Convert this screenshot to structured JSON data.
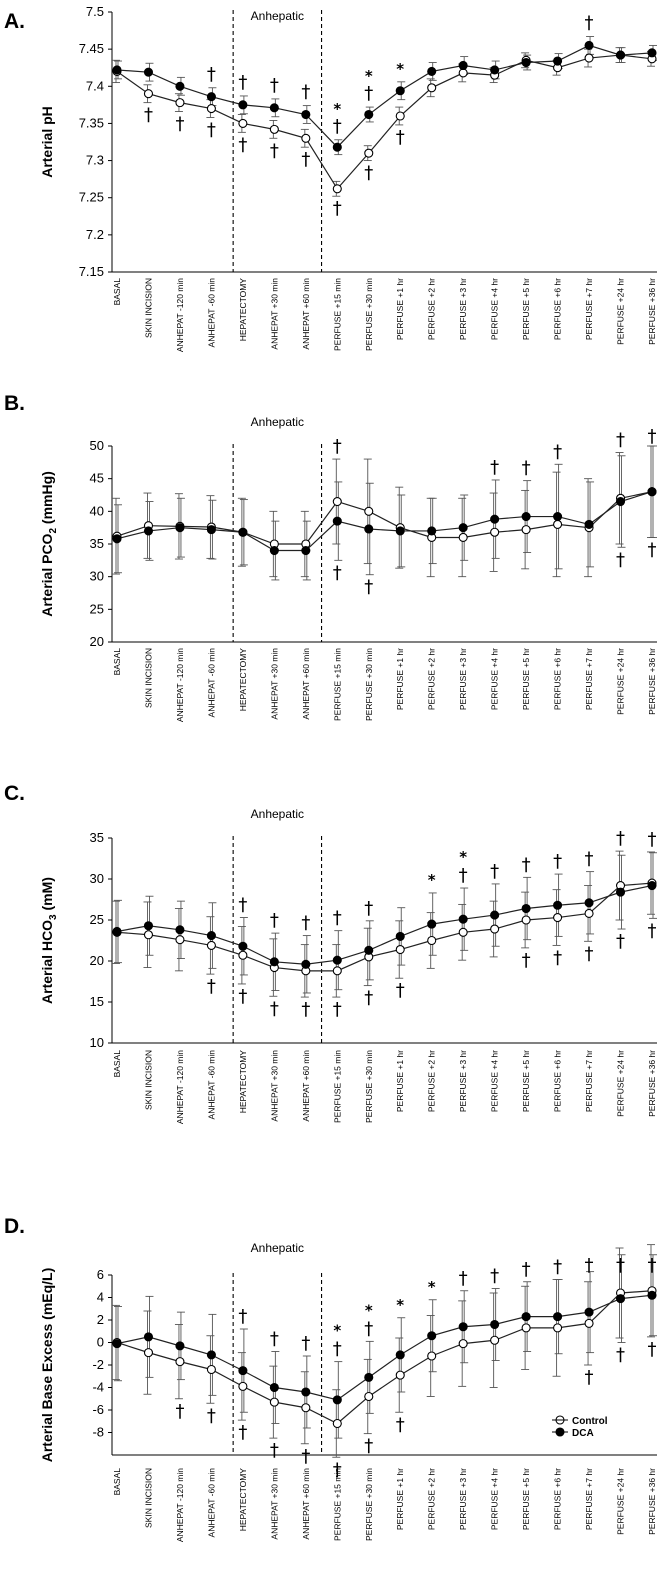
{
  "chart_data": [
    {
      "type": "line",
      "panel": "A.",
      "ylabel": "Arterial pH",
      "ylim": [
        7.15,
        7.5
      ],
      "yticks": [
        "7.15",
        "7.2",
        "7.25",
        "7.3",
        "7.35",
        "7.4",
        "7.45",
        "7.5"
      ],
      "categories": [
        "BASAL",
        "SKIN INCISION",
        "ANHEPAT -120 min",
        "ANHEPAT -60 min",
        "HEPATECTOMY",
        "ANHEPAT +30 min",
        "ANHEPAT +60 min",
        "PERFUSE +15 min",
        "PERFUSE +30 min",
        "PERFUSE +1 hr",
        "PERFUSE +2 hr",
        "PERFUSE +3 hr",
        "PERFUSE +4 hr",
        "PERFUSE +5 hr",
        "PERFUSE +6 hr",
        "PERFUSE +7 hr",
        "PERFUSE +24 hr",
        "PERFUSE +36 hr"
      ],
      "annotation": "Anhepatic",
      "series": [
        {
          "marker": "open",
          "values": [
            7.42,
            7.39,
            7.378,
            7.37,
            7.35,
            7.342,
            7.33,
            7.262,
            7.31,
            7.36,
            7.398,
            7.418,
            7.415,
            7.435,
            7.425,
            7.438,
            7.442,
            7.437
          ],
          "err": [
            0.015,
            0.012,
            0.012,
            0.012,
            0.012,
            0.012,
            0.012,
            0.01,
            0.01,
            0.012,
            0.012,
            0.012,
            0.01,
            0.01,
            0.01,
            0.012,
            0.01,
            0.01
          ]
        },
        {
          "marker": "filled",
          "values": [
            7.422,
            7.419,
            7.4,
            7.386,
            7.375,
            7.371,
            7.362,
            7.318,
            7.362,
            7.394,
            7.42,
            7.428,
            7.422,
            7.432,
            7.434,
            7.455,
            7.442,
            7.445
          ],
          "err": [
            0.012,
            0.012,
            0.012,
            0.012,
            0.012,
            0.012,
            0.012,
            0.01,
            0.01,
            0.012,
            0.012,
            0.012,
            0.012,
            0.01,
            0.01,
            0.012,
            0.01,
            0.01
          ]
        }
      ],
      "daggers_above": [
        3,
        4,
        5,
        6,
        7,
        8,
        15
      ],
      "daggers_below": [
        1,
        2,
        3,
        4,
        5,
        6,
        7,
        8,
        9
      ],
      "stars": [
        7,
        8,
        9
      ]
    },
    {
      "type": "line",
      "panel": "B.",
      "ylabel_main": "Arterial PCO",
      "ylabel_sub": "2",
      "ylabel_unit": " (mmHg)",
      "ylim": [
        20,
        50
      ],
      "yticks": [
        "20",
        "25",
        "30",
        "35",
        "40",
        "45",
        "50"
      ],
      "categories": [
        "BASAL",
        "SKIN INCISION",
        "ANHEPAT -120 min",
        "ANHEPAT -60 min",
        "HEPATECTOMY",
        "ANHEPAT +30 min",
        "ANHEPAT +60 min",
        "PERFUSE +15 min",
        "PERFUSE +30 min",
        "PERFUSE +1 hr",
        "PERFUSE +2 hr",
        "PERFUSE +3 hr",
        "PERFUSE +4 hr",
        "PERFUSE +5 hr",
        "PERFUSE +6 hr",
        "PERFUSE +7 hr",
        "PERFUSE +24 hr",
        "PERFUSE +36 hr"
      ],
      "annotation": "Anhepatic",
      "series": [
        {
          "marker": "open",
          "values": [
            36.2,
            37.8,
            37.7,
            37.6,
            36.8,
            35.0,
            35.0,
            41.5,
            40.0,
            37.5,
            36.0,
            36.0,
            36.8,
            37.2,
            38.0,
            37.5,
            42.0,
            43.0
          ],
          "err": [
            5.8,
            5.0,
            5.0,
            4.8,
            5.2,
            5.0,
            5.0,
            6.5,
            8.0,
            6.2,
            6.0,
            6.0,
            6.0,
            6.0,
            8.0,
            7.5,
            7.0,
            7.0
          ]
        },
        {
          "marker": "filled",
          "values": [
            35.8,
            37.0,
            37.5,
            37.2,
            36.8,
            34.0,
            34.0,
            38.5,
            37.3,
            37.0,
            37.0,
            37.5,
            38.8,
            39.2,
            39.2,
            38.0,
            41.5,
            43.0
          ],
          "err": [
            5.2,
            4.5,
            4.5,
            4.5,
            5.0,
            4.5,
            4.5,
            6.0,
            7.0,
            5.5,
            5.0,
            5.0,
            6.0,
            5.5,
            8.0,
            6.5,
            7.0,
            7.0
          ]
        }
      ],
      "daggers_above": [
        7,
        12,
        13,
        14,
        16,
        17
      ],
      "daggers_below": [
        7,
        8,
        16,
        17
      ],
      "stars": []
    },
    {
      "type": "line",
      "panel": "C.",
      "ylabel_main": "Arterial HCO",
      "ylabel_sup": "3",
      "ylabel_unit": " (mM)",
      "ylim": [
        10,
        35
      ],
      "yticks": [
        "10",
        "15",
        "20",
        "25",
        "30",
        "35"
      ],
      "categories": [
        "BASAL",
        "SKIN INCISION",
        "ANHEPAT -120 min",
        "ANHEPAT -60 min",
        "HEPATECTOMY",
        "ANHEPAT +30 min",
        "ANHEPAT +60 min",
        "PERFUSE +15 min",
        "PERFUSE +30 min",
        "PERFUSE +1 hr",
        "PERFUSE +2 hr",
        "PERFUSE +3 hr",
        "PERFUSE +4 hr",
        "PERFUSE +5 hr",
        "PERFUSE +6 hr",
        "PERFUSE +7 hr",
        "PERFUSE +24 hr",
        "PERFUSE +36 hr"
      ],
      "annotation": "Anhepatic",
      "series": [
        {
          "marker": "open",
          "values": [
            23.5,
            23.2,
            22.6,
            21.9,
            20.7,
            19.2,
            18.8,
            18.8,
            20.5,
            21.4,
            22.5,
            23.5,
            23.9,
            25.0,
            25.3,
            25.8,
            29.2,
            29.5
          ],
          "err": [
            3.8,
            4.0,
            3.8,
            3.5,
            3.5,
            3.5,
            3.2,
            3.2,
            3.5,
            3.5,
            3.4,
            3.4,
            3.4,
            3.4,
            3.4,
            3.4,
            4.2,
            3.8
          ]
        },
        {
          "marker": "filled",
          "values": [
            23.6,
            24.3,
            23.8,
            23.1,
            21.8,
            19.9,
            19.6,
            20.1,
            21.3,
            23.0,
            24.5,
            25.1,
            25.6,
            26.4,
            26.8,
            27.1,
            28.4,
            29.2
          ],
          "err": [
            3.8,
            3.6,
            3.5,
            4.0,
            3.5,
            3.5,
            3.5,
            3.6,
            3.6,
            3.5,
            3.8,
            3.8,
            3.8,
            3.8,
            3.8,
            3.8,
            4.5,
            4.0
          ]
        }
      ],
      "daggers_above": [
        4,
        5,
        6,
        7,
        8,
        11,
        12,
        13,
        14,
        15,
        16,
        17
      ],
      "daggers_below": [
        3,
        4,
        5,
        6,
        7,
        8,
        9,
        13,
        14,
        15,
        16,
        17
      ],
      "stars": [
        10,
        11
      ]
    },
    {
      "type": "line",
      "panel": "D.",
      "ylabel": "Arterial Base Excess (mEq/L)",
      "ylim": [
        -10,
        6
      ],
      "yticks": [
        "-8",
        "-6",
        "-4",
        "-2",
        "0",
        "2",
        "4",
        "6"
      ],
      "categories": [
        "BASAL",
        "SKIN INCISION",
        "ANHEPAT -120 min",
        "ANHEPAT -60 min",
        "HEPATECTOMY",
        "ANHEPAT +30 min",
        "ANHEPAT +60 min",
        "PERFUSE +15 min",
        "PERFUSE +30 min",
        "PERFUSE +1 hr",
        "PERFUSE +2 hr",
        "PERFUSE +3 hr",
        "PERFUSE +4 hr",
        "PERFUSE +5 hr",
        "PERFUSE +6 hr",
        "PERFUSE +7 hr",
        "PERFUSE +24 hr",
        "PERFUSE +36 hr"
      ],
      "annotation": "Anhepatic",
      "legend": [
        "Control",
        "DCA"
      ],
      "legend_position": "lower-right",
      "series": [
        {
          "name": "Control",
          "marker": "open",
          "values": [
            0.0,
            -0.9,
            -1.7,
            -2.4,
            -3.9,
            -5.3,
            -5.8,
            -7.2,
            -4.8,
            -2.9,
            -1.2,
            -0.1,
            0.2,
            1.3,
            1.3,
            1.7,
            4.4,
            4.6
          ],
          "err": [
            3.3,
            3.7,
            3.3,
            3.0,
            3.0,
            3.2,
            3.2,
            3.0,
            3.3,
            3.3,
            3.6,
            3.8,
            4.2,
            3.7,
            4.3,
            3.7,
            4.0,
            4.1
          ]
        },
        {
          "name": "DCA",
          "marker": "filled",
          "values": [
            -0.1,
            0.5,
            -0.3,
            -1.1,
            -2.5,
            -4.0,
            -4.4,
            -5.1,
            -3.1,
            -1.1,
            0.6,
            1.4,
            1.6,
            2.3,
            2.3,
            2.7,
            3.9,
            4.2
          ],
          "err": [
            3.3,
            3.6,
            3.0,
            3.6,
            3.7,
            3.2,
            3.2,
            3.4,
            3.2,
            3.3,
            3.2,
            3.2,
            3.2,
            3.1,
            3.3,
            3.6,
            3.9,
            3.6
          ]
        }
      ],
      "daggers_above": [
        4,
        5,
        6,
        7,
        8,
        11,
        12,
        13,
        14,
        15,
        16,
        17
      ],
      "daggers_below": [
        2,
        3,
        4,
        5,
        6,
        7,
        8,
        9,
        15,
        16,
        17
      ],
      "stars": [
        7,
        8,
        9,
        10
      ]
    }
  ]
}
